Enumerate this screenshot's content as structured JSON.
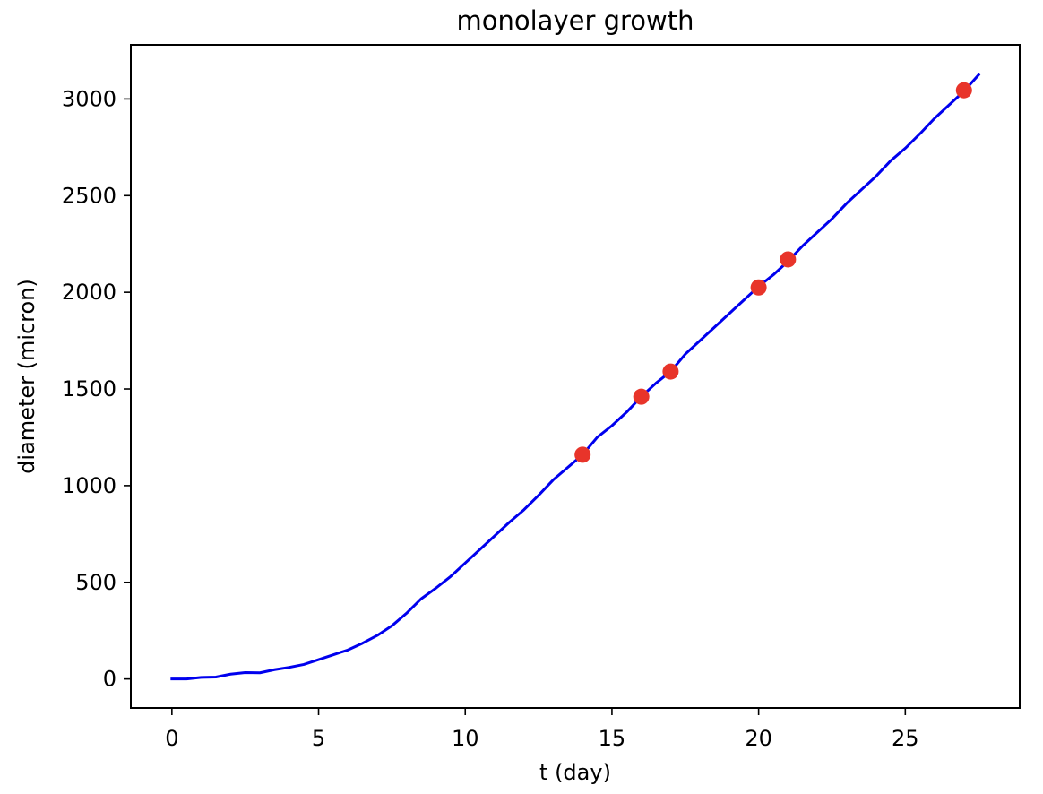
{
  "chart_data": {
    "type": "line",
    "title": "monolayer growth",
    "xlabel": "t (day)",
    "ylabel": "diameter (micron)",
    "xlim": [
      -1.4,
      28.9
    ],
    "ylim": [
      -150,
      3280
    ],
    "xticks": [
      0,
      5,
      10,
      15,
      20,
      25
    ],
    "yticks": [
      0,
      500,
      1000,
      1500,
      2000,
      2500,
      3000
    ],
    "grid": false,
    "legend": "none",
    "series": [
      {
        "kind": "line",
        "color": "#0000ee",
        "x": [
          0,
          0.5,
          1,
          1.5,
          2,
          2.5,
          3,
          3.5,
          4,
          4.5,
          5,
          5.5,
          6,
          6.5,
          7,
          7.5,
          8,
          8.5,
          9,
          9.5,
          10,
          10.5,
          11,
          11.5,
          12,
          12.5,
          13,
          13.5,
          14,
          14.5,
          15,
          15.5,
          16,
          16.5,
          17,
          17.5,
          18,
          18.5,
          19,
          19.5,
          20,
          20.5,
          21,
          21.5,
          22,
          22.5,
          23,
          23.5,
          24,
          24.5,
          25,
          25.5,
          26,
          26.5,
          27,
          27.5
        ],
        "y": [
          0,
          0,
          8,
          10,
          25,
          33,
          32,
          48,
          60,
          75,
          100,
          125,
          150,
          185,
          225,
          275,
          340,
          415,
          470,
          530,
          600,
          670,
          740,
          810,
          875,
          950,
          1030,
          1095,
          1160,
          1250,
          1310,
          1380,
          1460,
          1530,
          1590,
          1680,
          1750,
          1820,
          1890,
          1960,
          2030,
          2090,
          2160,
          2240,
          2310,
          2380,
          2460,
          2530,
          2600,
          2680,
          2745,
          2820,
          2900,
          2970,
          3040,
          3125
        ]
      },
      {
        "kind": "scatter",
        "color": "#e8342a",
        "x": [
          14,
          16,
          17,
          20,
          21,
          27
        ],
        "y": [
          1160,
          1460,
          1590,
          2025,
          2170,
          3045
        ]
      }
    ]
  }
}
